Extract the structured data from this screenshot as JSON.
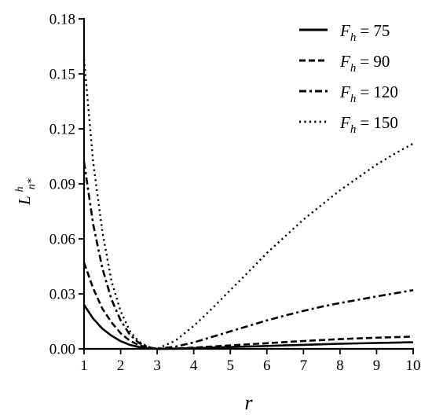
{
  "chart_data": {
    "type": "line",
    "title": "",
    "xlabel": "r",
    "ylabel": {
      "base": "L",
      "sup": "h",
      "sub": "n*"
    },
    "xlim": [
      1,
      10
    ],
    "ylim": [
      0,
      0.18
    ],
    "xticks": [
      1,
      2,
      3,
      4,
      5,
      6,
      7,
      8,
      9,
      10
    ],
    "yticks": [
      0.0,
      0.03,
      0.06,
      0.09,
      0.12,
      0.15,
      0.18
    ],
    "ytick_labels": [
      "0.00",
      "0.03",
      "0.06",
      "0.09",
      "0.12",
      "0.15",
      "0.18"
    ],
    "grid": false,
    "legend_position": "top-right",
    "x": [
      1,
      1.25,
      1.5,
      1.75,
      2,
      2.25,
      2.5,
      2.75,
      3,
      3.5,
      4,
      4.5,
      5,
      5.5,
      6,
      6.5,
      7,
      7.5,
      8,
      8.5,
      9,
      9.5,
      10
    ],
    "series": [
      {
        "name": "F_h = 75",
        "name_base": "F",
        "name_sub": "h",
        "name_value": "= 75",
        "dash": "solid",
        "values": [
          0.024,
          0.0165,
          0.011,
          0.0072,
          0.0042,
          0.0022,
          0.001,
          0.0003,
          0.0,
          0.0001,
          0.0004,
          0.0007,
          0.001,
          0.0013,
          0.0016,
          0.0019,
          0.0022,
          0.0025,
          0.0028,
          0.003,
          0.0032,
          0.0034,
          0.0036
        ]
      },
      {
        "name": "F_h = 90",
        "name_base": "F",
        "name_sub": "h",
        "name_value": "= 90",
        "dash": "dashed",
        "values": [
          0.047,
          0.033,
          0.022,
          0.0145,
          0.0085,
          0.0045,
          0.002,
          0.0006,
          0.0,
          0.0002,
          0.0007,
          0.0013,
          0.0019,
          0.0025,
          0.0031,
          0.0037,
          0.0043,
          0.0048,
          0.0053,
          0.0057,
          0.0061,
          0.0064,
          0.0067
        ]
      },
      {
        "name": "F_h = 120",
        "name_base": "F",
        "name_sub": "h",
        "name_value": "= 120",
        "dash": "dashdot",
        "values": [
          0.102,
          0.068,
          0.044,
          0.027,
          0.0155,
          0.0078,
          0.0033,
          0.0009,
          0.0,
          0.0012,
          0.0035,
          0.0065,
          0.0095,
          0.0125,
          0.0155,
          0.0182,
          0.0207,
          0.023,
          0.025,
          0.0268,
          0.0286,
          0.0303,
          0.032
        ]
      },
      {
        "name": "F_h = 150",
        "name_base": "F",
        "name_sub": "h",
        "name_value": "= 150",
        "dash": "dotted",
        "values": [
          0.158,
          0.102,
          0.064,
          0.037,
          0.0205,
          0.0098,
          0.004,
          0.0011,
          0.0,
          0.0045,
          0.0125,
          0.022,
          0.032,
          0.042,
          0.0523,
          0.0614,
          0.0705,
          0.0785,
          0.0865,
          0.0935,
          0.1005,
          0.1065,
          0.112
        ]
      }
    ]
  }
}
